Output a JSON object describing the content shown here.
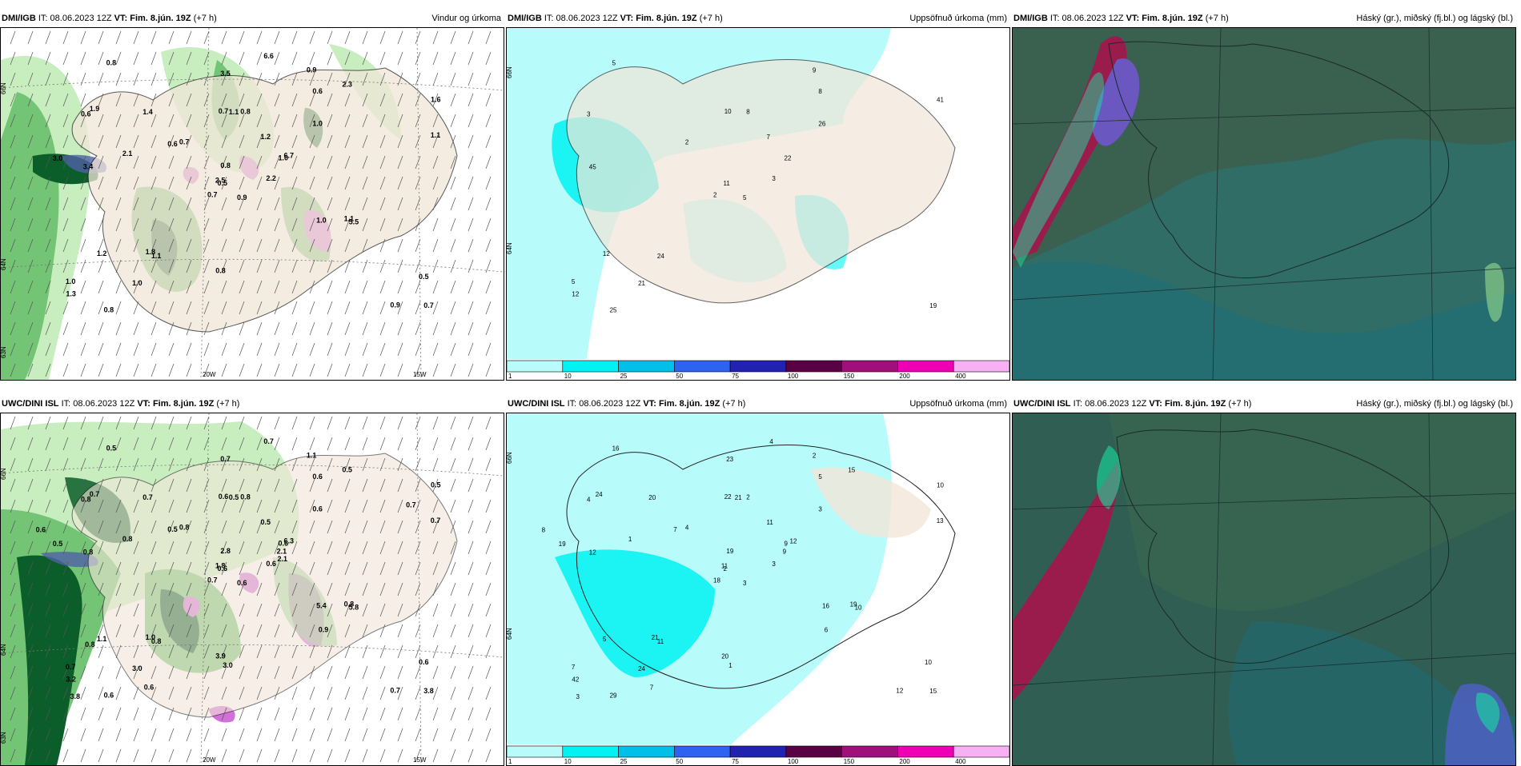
{
  "panels": [
    {
      "id": "dmi-wind",
      "model": "DMI/IGB",
      "it_label": "IT:",
      "it_value": "08.06.2023 12Z",
      "vt_label": "VT:",
      "vt_value": "Fim. 8.jún. 19Z",
      "lead": "(+7 h)",
      "product": "Vindur og úrkoma",
      "lat_labels": [
        "66N",
        "64N",
        "63N"
      ],
      "lon_labels": [
        "20W",
        "15W"
      ],
      "values": [
        "0.9",
        "0.6",
        "0.5",
        "1.0",
        "1.0",
        "1.1",
        "0.9",
        "0.8",
        "0.6",
        "2.2",
        "0.8",
        "0.7",
        "3.4",
        "1.6",
        "0.7",
        "1.0",
        "0.8",
        "0.7",
        "1.2",
        "1.2",
        "0.7",
        "1.3",
        "1.0",
        "1.1",
        "6.7",
        "5.5",
        "1.9",
        "3.5",
        "3.0",
        "1.0",
        "1.1",
        "2.5",
        "0.8",
        "0.8",
        "1.4",
        "2.3",
        "1.8",
        "0.9",
        "0.5",
        "1.1",
        "6.6",
        "0.6",
        "2.1"
      ]
    },
    {
      "id": "dmi-precip",
      "model": "DMI/IGB",
      "it_label": "IT:",
      "it_value": "08.06.2023 12Z",
      "vt_label": "VT:",
      "vt_value": "Fim. 8.jún. 19Z",
      "lead": "(+7 h)",
      "product": "Uppsöfnuð úrkoma (mm)",
      "lat_labels": [
        "66N",
        "64N"
      ],
      "values": [
        "5",
        "3",
        "11",
        "5",
        "22",
        "24",
        "9",
        "8",
        "8",
        "3",
        "5",
        "19",
        "45",
        "41",
        "2",
        "26",
        "25",
        "10",
        "7",
        "12",
        "2",
        "12",
        "21"
      ],
      "legend": [
        "1",
        "10",
        "25",
        "50",
        "75",
        "100",
        "150",
        "200",
        "400"
      ]
    },
    {
      "id": "dmi-cloud",
      "model": "DMI/IGB",
      "it_label": "IT:",
      "it_value": "08.06.2023 12Z",
      "vt_label": "VT:",
      "vt_value": "Fim. 8.jún. 19Z",
      "lead": "(+7 h)",
      "product": "Háský (gr.), miðský (fj.bl.) og lágský (bl.)"
    },
    {
      "id": "uwc-wind",
      "model": "UWC/DINI ISL",
      "it_label": "IT:",
      "it_value": "08.06.2023 12Z",
      "vt_label": "VT:",
      "vt_value": "Fim. 8.jún. 19Z",
      "lead": "(+7 h)",
      "product": "",
      "lat_labels": [
        "66N",
        "64N",
        "63N"
      ],
      "lon_labels": [
        "20W",
        "15W"
      ],
      "values": [
        "0.6",
        "0.8",
        "0.6",
        "0.7",
        "0.6",
        "0.8",
        "1.1",
        "0.8",
        "0.6",
        "0.6",
        "0.5",
        "3.8",
        "0.8",
        "0.5",
        "0.7",
        "0.6",
        "0.6",
        "0.6",
        "0.5",
        "1.1",
        "0.8",
        "3.2",
        "3.0",
        "0.5",
        "6.3",
        "5.8",
        "0.7",
        "0.7",
        "0.5",
        "5.4",
        "0.7",
        "1.8",
        "3.9",
        "2.8",
        "0.7",
        "0.5",
        "1.0",
        "0.7",
        "0.6",
        "0.8",
        "0.7",
        "0.5",
        "0.8",
        "0.9",
        "0.6",
        "0.6",
        "2.1",
        "3.8",
        "3.0",
        "2.1",
        "0.8",
        "0.7"
      ]
    },
    {
      "id": "uwc-precip",
      "model": "UWC/DINI ISL",
      "it_label": "IT:",
      "it_value": "08.06.2023 12Z",
      "vt_label": "VT:",
      "vt_value": "Fim. 8.jún. 19Z",
      "lead": "(+7 h)",
      "product": "Uppsöfnuð úrkoma (mm)",
      "lat_labels": [
        "66N",
        "64N"
      ],
      "values": [
        "3",
        "4",
        "2",
        "7",
        "9",
        "11",
        "2",
        "2",
        "5",
        "3",
        "16",
        "15",
        "12",
        "10",
        "18",
        "3",
        "29",
        "22",
        "11",
        "5",
        "4",
        "42",
        "24",
        "21",
        "12",
        "10",
        "24",
        "23",
        "19",
        "16",
        "13",
        "11",
        "20",
        "19",
        "20",
        "15",
        "21",
        "12",
        "10",
        "19",
        "4",
        "7",
        "1",
        "6",
        "7",
        "8",
        "9",
        "3",
        "1"
      ],
      "legend": [
        "1",
        "10",
        "25",
        "50",
        "75",
        "100",
        "150",
        "200",
        "400"
      ]
    },
    {
      "id": "uwc-cloud",
      "model": "UWC/DINI ISL",
      "it_label": "IT:",
      "it_value": "08.06.2023 12Z",
      "vt_label": "VT:",
      "vt_value": "Fim. 8.jún. 19Z",
      "lead": "(+7 h)",
      "product": "Háský (gr.), miðský (fj.bl.) og lágský (bl.)"
    }
  ],
  "legend_colors": [
    "#b8fbfb",
    "#00f2f2",
    "#00bfe8",
    "#2d63ee",
    "#2222b0",
    "#5a0045",
    "#a0107c",
    "#f000b4",
    "#f6b0f3"
  ],
  "colors": {
    "land": "#f2e6d8",
    "sea_green_light": "#c8eec0",
    "sea_green": "#74c476",
    "dark_green": "#0b5e2a",
    "precip_cyan": "#00f2f2",
    "precip_light": "#b8fbfb",
    "magenta": "#e070e0",
    "cloud_teal": "#2e6a64",
    "cloud_dark": "#325e50",
    "cloud_red": "#9a1c4c",
    "cloud_bright": "#18e0a0"
  }
}
